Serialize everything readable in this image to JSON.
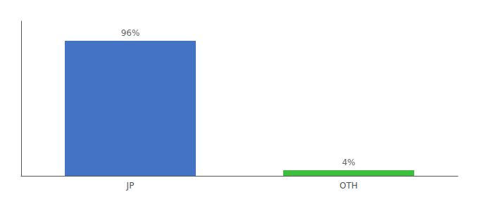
{
  "chart_data": {
    "type": "bar",
    "categories": [
      "JP",
      "OTH"
    ],
    "values": [
      96,
      4
    ],
    "value_labels": [
      "96%",
      "4%"
    ],
    "colors": [
      "#4472c4",
      "#3dbf3d"
    ],
    "ylim": [
      0,
      110
    ],
    "grid": false,
    "data_labels": true,
    "tick_labels": "x"
  }
}
